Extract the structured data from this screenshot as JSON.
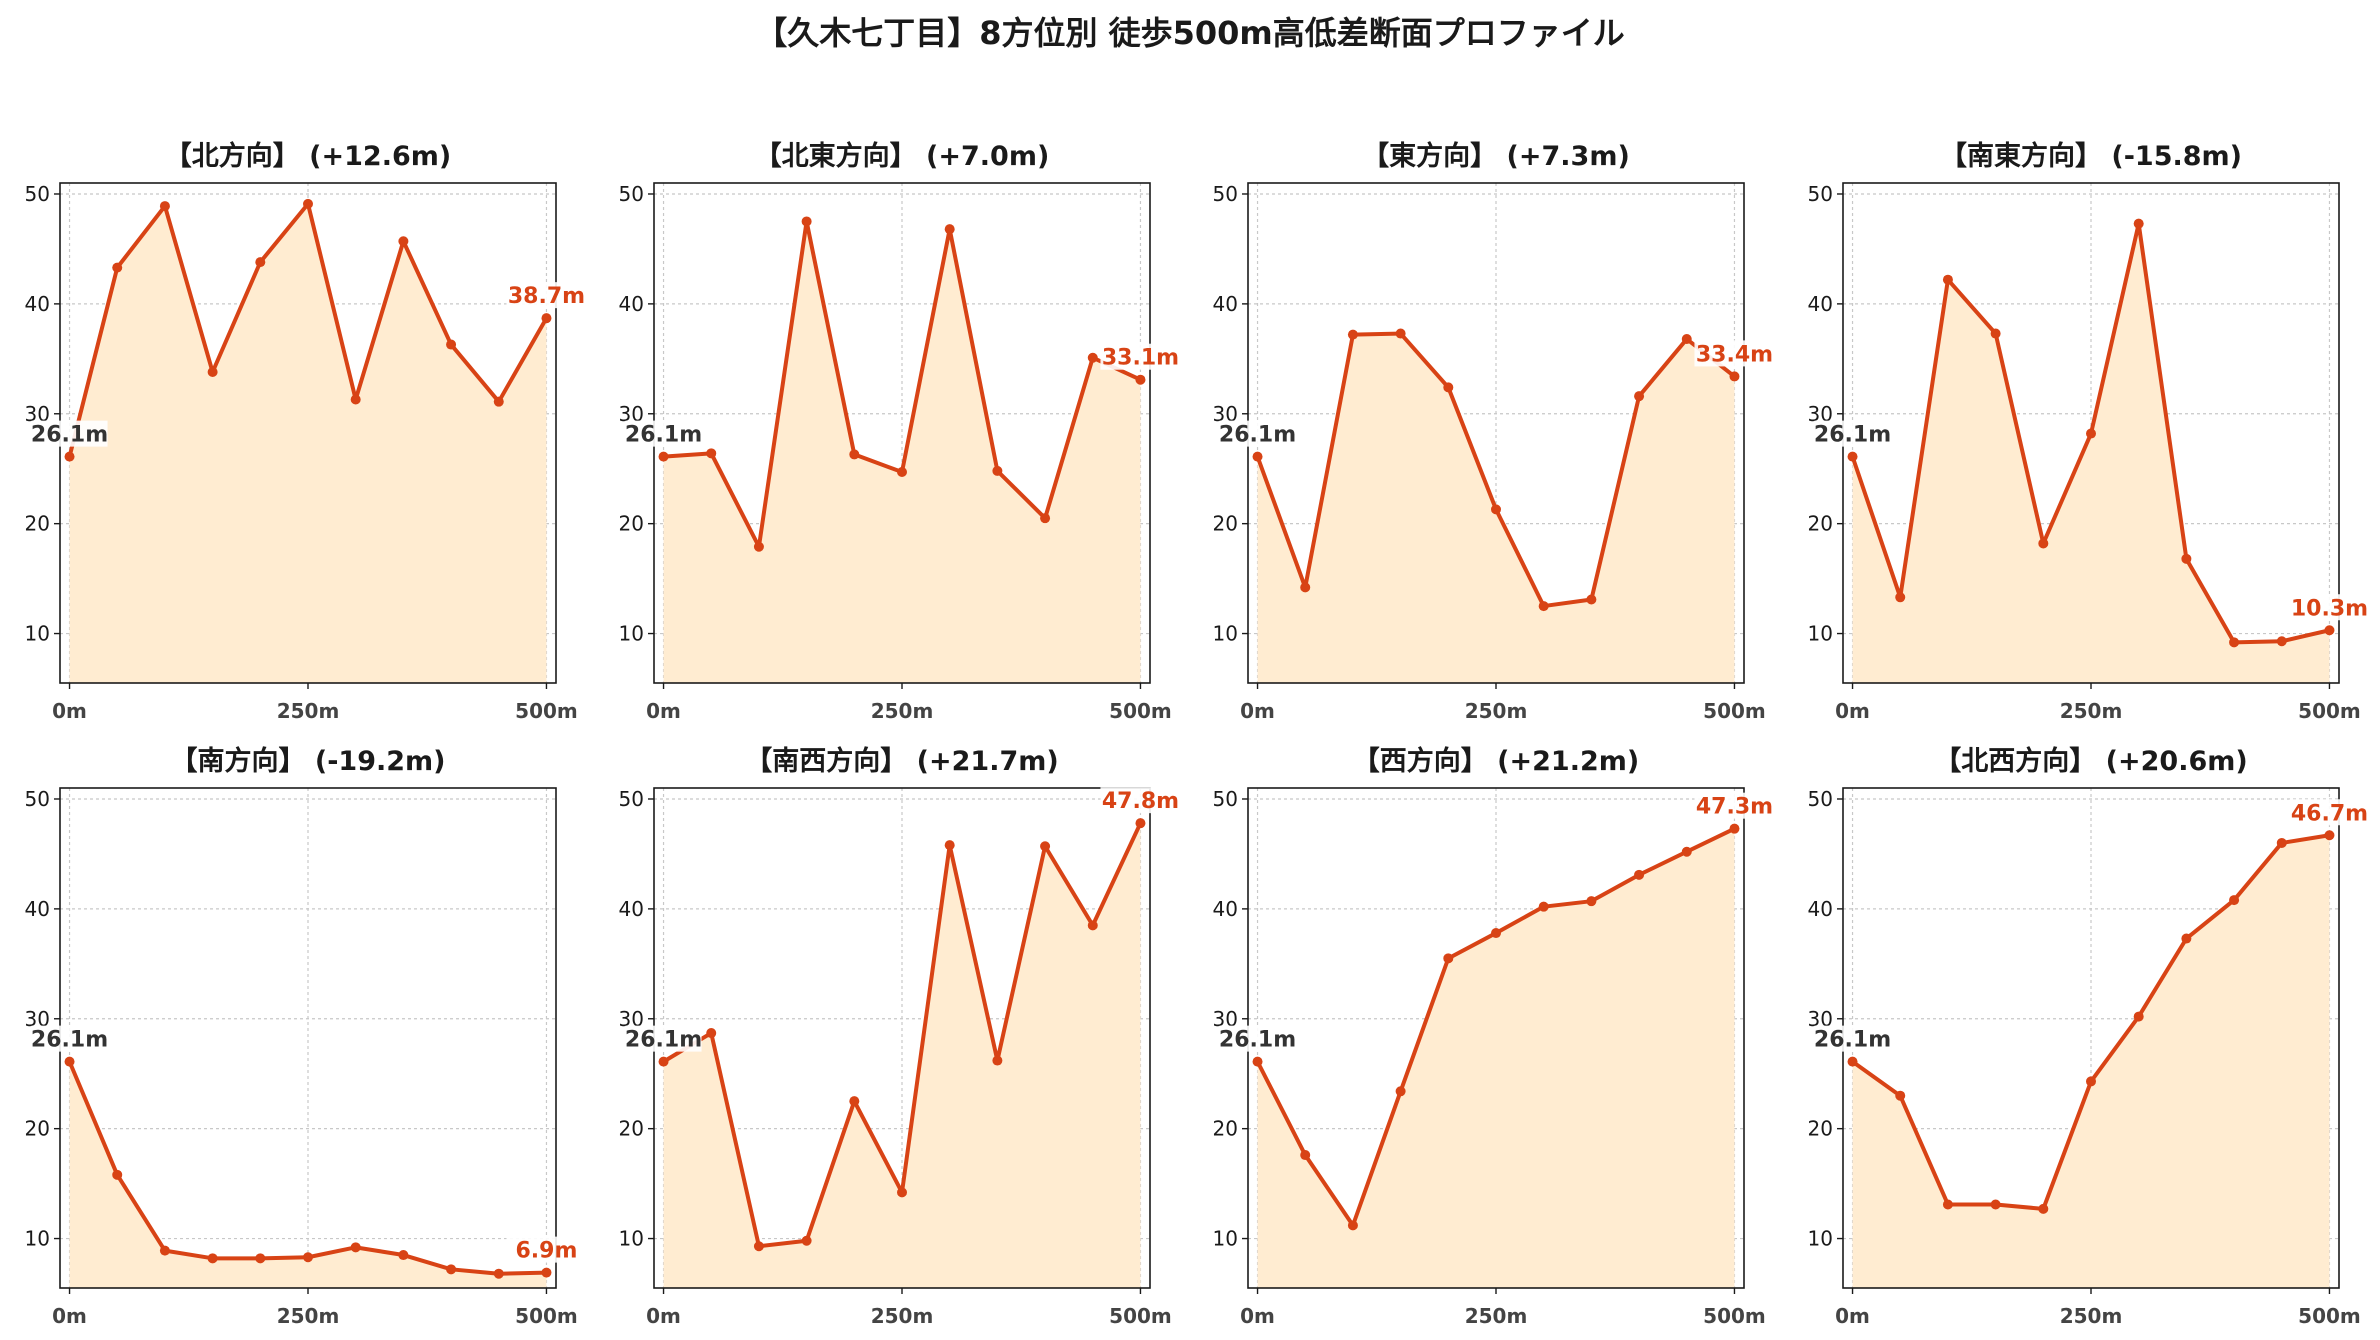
{
  "title": "【久木七丁目】8方位別 徒歩500m高低差断面プロファイル",
  "colors": {
    "line": "#d84315",
    "fill": "#ffecd1",
    "grid": "#c8c8c8",
    "start_label": "#333333"
  },
  "chart_data": [
    {
      "type": "area",
      "title": "【北方向】 (+12.6m)",
      "x": [
        0,
        50,
        100,
        150,
        200,
        250,
        300,
        350,
        400,
        450,
        500
      ],
      "values": [
        26.1,
        43.3,
        48.9,
        33.8,
        43.8,
        49.1,
        31.3,
        45.7,
        36.3,
        31.1,
        38.7
      ],
      "start_label": "26.1m",
      "end_label": "38.7m",
      "xticks": [
        {
          "v": 0,
          "label": "0m"
        },
        {
          "v": 250,
          "label": "250m"
        },
        {
          "v": 500,
          "label": "500m"
        }
      ],
      "yticks": [
        10,
        20,
        30,
        40,
        50
      ],
      "ylim": [
        5.5,
        51
      ],
      "xlim": [
        -10,
        510
      ],
      "grid": true
    },
    {
      "type": "area",
      "title": "【北東方向】 (+7.0m)",
      "x": [
        0,
        50,
        100,
        150,
        200,
        250,
        300,
        350,
        400,
        450,
        500
      ],
      "values": [
        26.1,
        26.4,
        17.9,
        47.5,
        26.3,
        24.7,
        46.8,
        24.8,
        20.5,
        35.1,
        33.1
      ],
      "start_label": "26.1m",
      "end_label": "33.1m",
      "xticks": [
        {
          "v": 0,
          "label": "0m"
        },
        {
          "v": 250,
          "label": "250m"
        },
        {
          "v": 500,
          "label": "500m"
        }
      ],
      "yticks": [
        10,
        20,
        30,
        40,
        50
      ],
      "ylim": [
        5.5,
        51
      ],
      "xlim": [
        -10,
        510
      ],
      "grid": true
    },
    {
      "type": "area",
      "title": "【東方向】 (+7.3m)",
      "x": [
        0,
        50,
        100,
        150,
        200,
        250,
        300,
        350,
        400,
        450,
        500
      ],
      "values": [
        26.1,
        14.2,
        37.2,
        37.3,
        32.4,
        21.3,
        12.5,
        13.1,
        31.6,
        36.8,
        33.4
      ],
      "start_label": "26.1m",
      "end_label": "33.4m",
      "xticks": [
        {
          "v": 0,
          "label": "0m"
        },
        {
          "v": 250,
          "label": "250m"
        },
        {
          "v": 500,
          "label": "500m"
        }
      ],
      "yticks": [
        10,
        20,
        30,
        40,
        50
      ],
      "ylim": [
        5.5,
        51
      ],
      "xlim": [
        -10,
        510
      ],
      "grid": true
    },
    {
      "type": "area",
      "title": "【南東方向】 (-15.8m)",
      "x": [
        0,
        50,
        100,
        150,
        200,
        250,
        300,
        350,
        400,
        450,
        500
      ],
      "values": [
        26.1,
        13.3,
        42.2,
        37.3,
        18.2,
        28.2,
        47.3,
        16.8,
        9.2,
        9.3,
        10.3
      ],
      "start_label": "26.1m",
      "end_label": "10.3m",
      "xticks": [
        {
          "v": 0,
          "label": "0m"
        },
        {
          "v": 250,
          "label": "250m"
        },
        {
          "v": 500,
          "label": "500m"
        }
      ],
      "yticks": [
        10,
        20,
        30,
        40,
        50
      ],
      "ylim": [
        5.5,
        51
      ],
      "xlim": [
        -10,
        510
      ],
      "grid": true
    },
    {
      "type": "area",
      "title": "【南方向】 (-19.2m)",
      "x": [
        0,
        50,
        100,
        150,
        200,
        250,
        300,
        350,
        400,
        450,
        500
      ],
      "values": [
        26.1,
        15.8,
        8.9,
        8.2,
        8.2,
        8.3,
        9.2,
        8.5,
        7.2,
        6.8,
        6.9
      ],
      "start_label": "26.1m",
      "end_label": "6.9m",
      "xticks": [
        {
          "v": 0,
          "label": "0m"
        },
        {
          "v": 250,
          "label": "250m"
        },
        {
          "v": 500,
          "label": "500m"
        }
      ],
      "yticks": [
        10,
        20,
        30,
        40,
        50
      ],
      "ylim": [
        5.5,
        51
      ],
      "xlim": [
        -10,
        510
      ],
      "grid": true
    },
    {
      "type": "area",
      "title": "【南西方向】 (+21.7m)",
      "x": [
        0,
        50,
        100,
        150,
        200,
        250,
        300,
        350,
        400,
        450,
        500
      ],
      "values": [
        26.1,
        28.7,
        9.3,
        9.8,
        22.5,
        14.2,
        45.8,
        26.2,
        45.7,
        38.5,
        47.8
      ],
      "start_label": "26.1m",
      "end_label": "47.8m",
      "xticks": [
        {
          "v": 0,
          "label": "0m"
        },
        {
          "v": 250,
          "label": "250m"
        },
        {
          "v": 500,
          "label": "500m"
        }
      ],
      "yticks": [
        10,
        20,
        30,
        40,
        50
      ],
      "ylim": [
        5.5,
        51
      ],
      "xlim": [
        -10,
        510
      ],
      "grid": true
    },
    {
      "type": "area",
      "title": "【西方向】 (+21.2m)",
      "x": [
        0,
        50,
        100,
        150,
        200,
        250,
        300,
        350,
        400,
        450,
        500
      ],
      "values": [
        26.1,
        17.6,
        11.2,
        23.4,
        35.5,
        37.8,
        40.2,
        40.7,
        43.1,
        45.2,
        47.3
      ],
      "start_label": "26.1m",
      "end_label": "47.3m",
      "xticks": [
        {
          "v": 0,
          "label": "0m"
        },
        {
          "v": 250,
          "label": "250m"
        },
        {
          "v": 500,
          "label": "500m"
        }
      ],
      "yticks": [
        10,
        20,
        30,
        40,
        50
      ],
      "ylim": [
        5.5,
        51
      ],
      "xlim": [
        -10,
        510
      ],
      "grid": true
    },
    {
      "type": "area",
      "title": "【北西方向】 (+20.6m)",
      "x": [
        0,
        50,
        100,
        150,
        200,
        250,
        300,
        350,
        400,
        450,
        500
      ],
      "values": [
        26.1,
        23.0,
        13.1,
        13.1,
        12.7,
        24.3,
        30.2,
        37.3,
        40.8,
        46.0,
        46.7
      ],
      "start_label": "26.1m",
      "end_label": "46.7m",
      "xticks": [
        {
          "v": 0,
          "label": "0m"
        },
        {
          "v": 250,
          "label": "250m"
        },
        {
          "v": 500,
          "label": "500m"
        }
      ],
      "yticks": [
        10,
        20,
        30,
        40,
        50
      ],
      "ylim": [
        5.5,
        51
      ],
      "xlim": [
        -10,
        510
      ],
      "grid": true
    }
  ]
}
